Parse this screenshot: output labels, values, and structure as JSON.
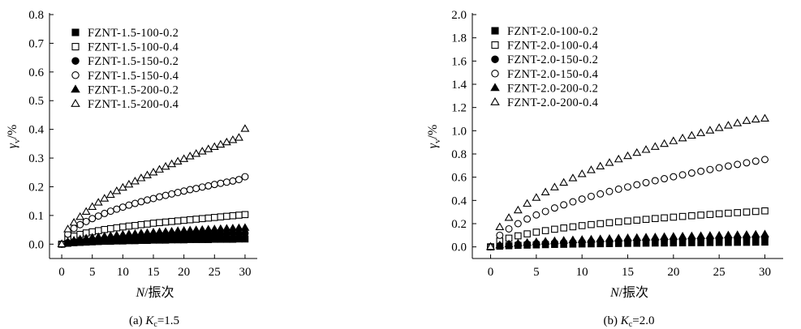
{
  "chart_data": [
    {
      "type": "scatter",
      "panel": "left",
      "caption_prefix": "(a) ",
      "caption_var": "K",
      "caption_sub": "c",
      "caption_value": "=1.5",
      "xlabel_var": "N",
      "xlabel_unit": "/振次",
      "ylabel_var": "γ",
      "ylabel_sub": "v",
      "ylabel_unit": "/%",
      "xlim": [
        -2,
        32
      ],
      "ylim": [
        -0.05,
        0.8
      ],
      "xticks": [
        0,
        5,
        10,
        15,
        20,
        25,
        30
      ],
      "xtick_labels": [
        "0",
        "5",
        "10",
        "15",
        "20",
        "25",
        "30"
      ],
      "yticks": [
        0.0,
        0.1,
        0.2,
        0.3,
        0.4,
        0.5,
        0.6,
        0.7,
        0.8
      ],
      "ytick_labels": [
        "0.0",
        "0.1",
        "0.2",
        "0.3",
        "0.4",
        "0.5",
        "0.6",
        "0.7",
        "0.8"
      ],
      "legend_position": "top-left",
      "x": [
        0,
        1,
        2,
        3,
        4,
        5,
        6,
        7,
        8,
        9,
        10,
        11,
        12,
        13,
        14,
        15,
        16,
        17,
        18,
        19,
        20,
        21,
        22,
        23,
        24,
        25,
        26,
        27,
        28,
        29,
        30
      ],
      "series": [
        {
          "name": "FZNT-1.5-100-0.2",
          "marker": "square-filled",
          "values": [
            0,
            0.003,
            0.005,
            0.006,
            0.007,
            0.008,
            0.009,
            0.01,
            0.01,
            0.011,
            0.011,
            0.012,
            0.012,
            0.013,
            0.013,
            0.014,
            0.014,
            0.014,
            0.015,
            0.015,
            0.015,
            0.016,
            0.016,
            0.016,
            0.016,
            0.017,
            0.017,
            0.017,
            0.017,
            0.018,
            0.018
          ]
        },
        {
          "name": "FZNT-1.5-100-0.4",
          "marker": "square-open",
          "values": [
            0,
            0.02,
            0.028,
            0.034,
            0.039,
            0.043,
            0.047,
            0.051,
            0.054,
            0.057,
            0.06,
            0.063,
            0.065,
            0.068,
            0.07,
            0.073,
            0.075,
            0.077,
            0.079,
            0.081,
            0.083,
            0.085,
            0.087,
            0.089,
            0.091,
            0.093,
            0.095,
            0.097,
            0.099,
            0.101,
            0.103
          ]
        },
        {
          "name": "FZNT-1.5-150-0.2",
          "marker": "circle-filled",
          "values": [
            0,
            0.005,
            0.008,
            0.011,
            0.013,
            0.015,
            0.016,
            0.018,
            0.019,
            0.02,
            0.021,
            0.022,
            0.023,
            0.024,
            0.025,
            0.026,
            0.027,
            0.028,
            0.029,
            0.03,
            0.031,
            0.032,
            0.032,
            0.033,
            0.034,
            0.035,
            0.035,
            0.036,
            0.037,
            0.037,
            0.038
          ]
        },
        {
          "name": "FZNT-1.5-150-0.4",
          "marker": "circle-open",
          "values": [
            0,
            0.035,
            0.055,
            0.068,
            0.079,
            0.089,
            0.098,
            0.107,
            0.115,
            0.122,
            0.129,
            0.136,
            0.142,
            0.148,
            0.154,
            0.159,
            0.165,
            0.17,
            0.175,
            0.18,
            0.185,
            0.19,
            0.194,
            0.199,
            0.203,
            0.208,
            0.212,
            0.216,
            0.22,
            0.225,
            0.235
          ]
        },
        {
          "name": "FZNT-1.5-200-0.2",
          "marker": "triangle-filled",
          "values": [
            0,
            0.008,
            0.013,
            0.017,
            0.02,
            0.023,
            0.025,
            0.027,
            0.029,
            0.031,
            0.033,
            0.035,
            0.036,
            0.038,
            0.039,
            0.041,
            0.042,
            0.043,
            0.044,
            0.046,
            0.047,
            0.048,
            0.049,
            0.05,
            0.051,
            0.052,
            0.053,
            0.054,
            0.055,
            0.056,
            0.057
          ]
        },
        {
          "name": "FZNT-1.5-200-0.4",
          "marker": "triangle-open",
          "values": [
            0,
            0.052,
            0.075,
            0.095,
            0.113,
            0.13,
            0.145,
            0.159,
            0.172,
            0.185,
            0.197,
            0.208,
            0.219,
            0.23,
            0.24,
            0.25,
            0.26,
            0.27,
            0.279,
            0.288,
            0.297,
            0.306,
            0.315,
            0.323,
            0.331,
            0.339,
            0.347,
            0.355,
            0.363,
            0.371,
            0.402
          ]
        }
      ]
    },
    {
      "type": "scatter",
      "panel": "right",
      "caption_prefix": "(b) ",
      "caption_var": "K",
      "caption_sub": "c",
      "caption_value": "=2.0",
      "xlabel_var": "N",
      "xlabel_unit": "/振次",
      "ylabel_var": "γ",
      "ylabel_sub": "v",
      "ylabel_unit": "/%",
      "xlim": [
        -2,
        32
      ],
      "ylim": [
        -0.1,
        2.0
      ],
      "xticks": [
        0,
        5,
        10,
        15,
        20,
        25,
        30
      ],
      "xtick_labels": [
        "0",
        "5",
        "10",
        "15",
        "20",
        "25",
        "30"
      ],
      "yticks": [
        0.0,
        0.2,
        0.4,
        0.6,
        0.8,
        1.0,
        1.2,
        1.4,
        1.6,
        1.8,
        2.0
      ],
      "ytick_labels": [
        "0.0",
        "0.2",
        "0.4",
        "0.6",
        "0.8",
        "1.0",
        "1.2",
        "1.4",
        "1.6",
        "1.8",
        "2.0"
      ],
      "legend_position": "top-left",
      "x": [
        0,
        1,
        2,
        3,
        4,
        5,
        6,
        7,
        8,
        9,
        10,
        11,
        12,
        13,
        14,
        15,
        16,
        17,
        18,
        19,
        20,
        21,
        22,
        23,
        24,
        25,
        26,
        27,
        28,
        29,
        30
      ],
      "series": [
        {
          "name": "FZNT-2.0-100-0.2",
          "marker": "square-filled",
          "values": [
            0,
            0.006,
            0.01,
            0.013,
            0.015,
            0.017,
            0.019,
            0.021,
            0.022,
            0.024,
            0.025,
            0.026,
            0.027,
            0.028,
            0.029,
            0.03,
            0.031,
            0.032,
            0.033,
            0.033,
            0.034,
            0.035,
            0.036,
            0.036,
            0.037,
            0.038,
            0.038,
            0.039,
            0.039,
            0.04,
            0.041
          ]
        },
        {
          "name": "FZNT-2.0-100-0.4",
          "marker": "square-open",
          "values": [
            0,
            0.05,
            0.075,
            0.095,
            0.112,
            0.127,
            0.14,
            0.152,
            0.163,
            0.173,
            0.183,
            0.192,
            0.2,
            0.208,
            0.216,
            0.223,
            0.23,
            0.237,
            0.244,
            0.25,
            0.256,
            0.262,
            0.268,
            0.274,
            0.279,
            0.285,
            0.29,
            0.295,
            0.3,
            0.305,
            0.31
          ]
        },
        {
          "name": "FZNT-2.0-150-0.2",
          "marker": "circle-filled",
          "values": [
            0,
            0.01,
            0.016,
            0.021,
            0.025,
            0.029,
            0.032,
            0.035,
            0.038,
            0.04,
            0.043,
            0.045,
            0.047,
            0.049,
            0.051,
            0.053,
            0.055,
            0.057,
            0.058,
            0.06,
            0.062,
            0.063,
            0.065,
            0.066,
            0.068,
            0.069,
            0.07,
            0.072,
            0.073,
            0.074,
            0.076
          ]
        },
        {
          "name": "FZNT-2.0-150-0.4",
          "marker": "circle-open",
          "values": [
            0,
            0.1,
            0.155,
            0.2,
            0.24,
            0.275,
            0.305,
            0.335,
            0.362,
            0.388,
            0.412,
            0.435,
            0.456,
            0.477,
            0.497,
            0.516,
            0.535,
            0.553,
            0.57,
            0.587,
            0.604,
            0.62,
            0.636,
            0.651,
            0.666,
            0.681,
            0.696,
            0.71,
            0.724,
            0.738,
            0.752
          ]
        },
        {
          "name": "FZNT-2.0-200-0.2",
          "marker": "triangle-filled",
          "values": [
            0,
            0.014,
            0.023,
            0.03,
            0.036,
            0.041,
            0.046,
            0.05,
            0.054,
            0.058,
            0.061,
            0.064,
            0.067,
            0.07,
            0.073,
            0.076,
            0.078,
            0.081,
            0.083,
            0.086,
            0.088,
            0.09,
            0.092,
            0.094,
            0.096,
            0.098,
            0.1,
            0.102,
            0.104,
            0.106,
            0.108
          ]
        },
        {
          "name": "FZNT-2.0-200-0.4",
          "marker": "triangle-open",
          "values": [
            0,
            0.17,
            0.25,
            0.315,
            0.372,
            0.423,
            0.47,
            0.513,
            0.553,
            0.591,
            0.627,
            0.661,
            0.693,
            0.724,
            0.754,
            0.782,
            0.81,
            0.836,
            0.862,
            0.887,
            0.911,
            0.935,
            0.958,
            0.98,
            1.002,
            1.024,
            1.045,
            1.065,
            1.085,
            1.097,
            1.105
          ]
        }
      ]
    }
  ]
}
